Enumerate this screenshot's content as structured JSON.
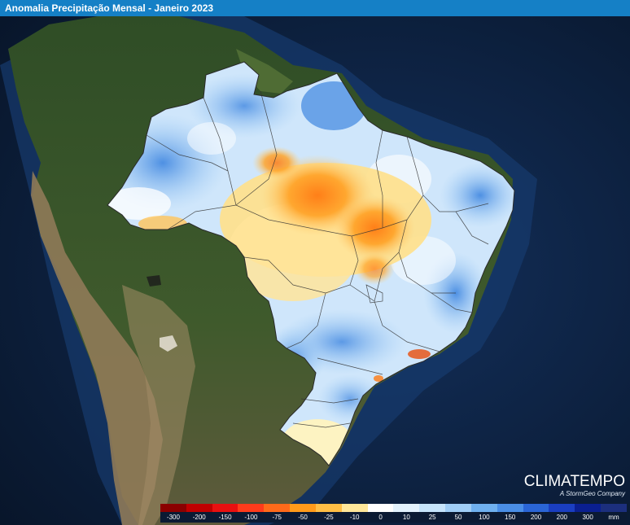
{
  "header": {
    "title": "Anomalia Precipitação Mensal - Janeiro 2023"
  },
  "map": {
    "colors": {
      "ocean_deep": "#0a1a35",
      "ocean_shelf": "#16407a",
      "land_forest": "#34502a",
      "land_dry": "#7a6a4c",
      "andes": "#a08e6c",
      "border_lines": "#333333"
    }
  },
  "brand": {
    "name": "CLIMATEMPO",
    "tagline": "A StormGeo Company"
  },
  "legend": {
    "unit": "mm",
    "items": [
      {
        "label": "-300",
        "color": "#8b0000"
      },
      {
        "label": "-200",
        "color": "#c00000"
      },
      {
        "label": "-150",
        "color": "#e81010"
      },
      {
        "label": "-100",
        "color": "#ff3b1b"
      },
      {
        "label": "-75",
        "color": "#ff6a1a"
      },
      {
        "label": "-50",
        "color": "#ff9a1a"
      },
      {
        "label": "-25",
        "color": "#ffbe45"
      },
      {
        "label": "-10",
        "color": "#ffe79a"
      },
      {
        "label": "0",
        "color": "#ffffff"
      },
      {
        "label": "10",
        "color": "#e3f2fd"
      },
      {
        "label": "25",
        "color": "#c6e4fb"
      },
      {
        "label": "50",
        "color": "#9fcdf6"
      },
      {
        "label": "100",
        "color": "#6fb0ef"
      },
      {
        "label": "150",
        "color": "#4a8ee6"
      },
      {
        "label": "200",
        "color": "#2a65d6"
      },
      {
        "label": "200",
        "color": "#1a3ec0"
      },
      {
        "label": "300",
        "color": "#0a1f90"
      },
      {
        "label": "mm",
        "color": "#1c2f7d"
      }
    ]
  }
}
